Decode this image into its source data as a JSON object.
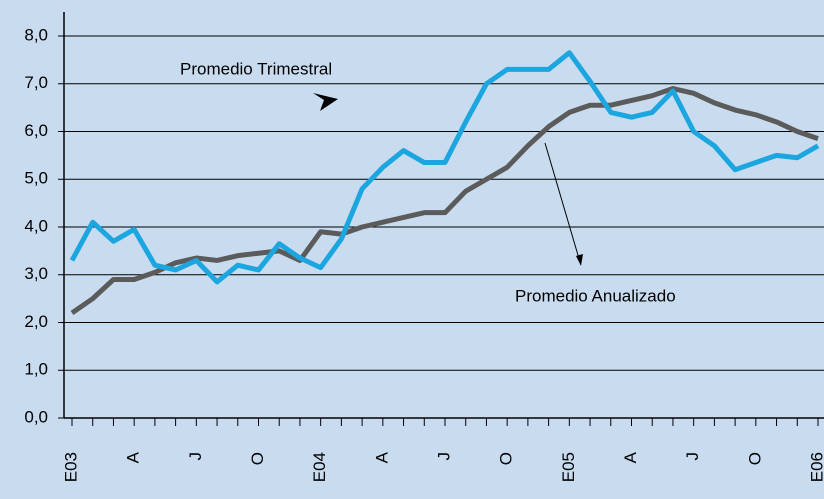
{
  "chart_data": {
    "type": "line",
    "categories": [
      "E03",
      null,
      null,
      "A",
      null,
      null,
      "J",
      null,
      null,
      "O",
      null,
      null,
      "E04",
      null,
      null,
      "A",
      null,
      null,
      "J",
      null,
      null,
      "O",
      null,
      null,
      "E05",
      null,
      null,
      "A",
      null,
      null,
      "J",
      null,
      null,
      "O",
      null,
      null,
      "E06"
    ],
    "series": [
      {
        "name": "Promedio Trimestral",
        "color": "#1ba6e0",
        "values": [
          3.3,
          4.1,
          3.7,
          3.95,
          3.2,
          3.1,
          3.3,
          2.85,
          3.2,
          3.1,
          3.65,
          3.35,
          3.15,
          3.75,
          4.8,
          5.25,
          5.6,
          5.35,
          5.35,
          6.2,
          7.0,
          7.3,
          7.3,
          7.3,
          7.65,
          7.05,
          6.4,
          6.3,
          6.4,
          6.85,
          6.0,
          5.7,
          5.2,
          5.35,
          5.5,
          5.45,
          5.7
        ]
      },
      {
        "name": "Promedio Anualizado",
        "color": "#5b5b5b",
        "values": [
          2.2,
          2.5,
          2.9,
          2.9,
          3.05,
          3.25,
          3.35,
          3.3,
          3.4,
          3.45,
          3.5,
          3.3,
          3.9,
          3.85,
          4.0,
          4.1,
          4.2,
          4.3,
          4.3,
          4.75,
          5.0,
          5.25,
          5.7,
          6.1,
          6.4,
          6.55,
          6.55,
          6.65,
          6.75,
          6.9,
          6.8,
          6.6,
          6.45,
          6.35,
          6.2,
          6.0,
          5.85
        ]
      }
    ],
    "ylim": [
      0,
      8
    ],
    "yticks": [
      {
        "value": 0,
        "label": "0,0"
      },
      {
        "value": 1,
        "label": "1,0"
      },
      {
        "value": 2,
        "label": "2,0"
      },
      {
        "value": 3,
        "label": "3,0"
      },
      {
        "value": 4,
        "label": "4,0"
      },
      {
        "value": 5,
        "label": "5,0"
      },
      {
        "value": 6,
        "label": "6,0"
      },
      {
        "value": 7,
        "label": "7,0"
      },
      {
        "value": 8,
        "label": "8,0"
      }
    ],
    "grid": true
  }
}
